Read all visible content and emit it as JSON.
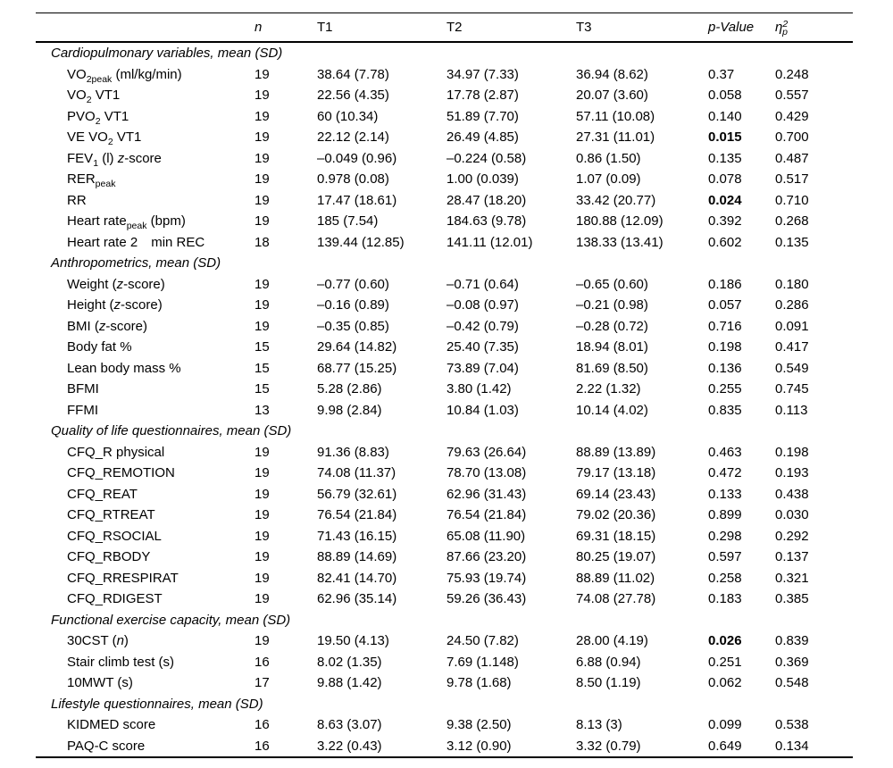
{
  "colors": {
    "text": "#000000",
    "background": "#ffffff",
    "rule": "#000000"
  },
  "table": {
    "columns": [
      {
        "name": "variable",
        "parts": []
      },
      {
        "name": "n",
        "parts": [
          {
            "text": "n",
            "style": "italic"
          }
        ]
      },
      {
        "name": "t1",
        "parts": [
          {
            "text": "T1"
          }
        ]
      },
      {
        "name": "t2",
        "parts": [
          {
            "text": "T2"
          }
        ]
      },
      {
        "name": "t3",
        "parts": [
          {
            "text": "T3"
          }
        ]
      },
      {
        "name": "p_value",
        "parts": [
          {
            "text": "p-Value",
            "style": "italic"
          }
        ]
      },
      {
        "name": "eta_squared_p",
        "parts": [
          {
            "text": "η",
            "style": "italic"
          },
          {
            "text": "2",
            "style": "italic sup"
          },
          {
            "text": "p",
            "style": "italic sub"
          }
        ]
      }
    ],
    "sections": [
      {
        "title": "Cardiopulmonary variables, mean (SD)",
        "rows": [
          {
            "label_parts": [
              {
                "text": "VO"
              },
              {
                "text": "2peak",
                "style": "sub"
              },
              {
                "text": " (ml/kg/min)"
              }
            ],
            "n": "19",
            "t1": "38.64 (7.78)",
            "t2": "34.97 (7.33)",
            "t3": "36.94 (8.62)",
            "p": "0.37",
            "p_bold": false,
            "eta": "0.248"
          },
          {
            "label_parts": [
              {
                "text": "VO"
              },
              {
                "text": "2",
                "style": "sub"
              },
              {
                "text": " VT1"
              }
            ],
            "n": "19",
            "t1": "22.56 (4.35)",
            "t2": "17.78 (2.87)",
            "t3": "20.07 (3.60)",
            "p": "0.058",
            "p_bold": false,
            "eta": "0.557"
          },
          {
            "label_parts": [
              {
                "text": "PVO"
              },
              {
                "text": "2",
                "style": "sub"
              },
              {
                "text": " VT1"
              }
            ],
            "n": "19",
            "t1": "60 (10.34)",
            "t2": "51.89 (7.70)",
            "t3": "57.11 (10.08)",
            "p": "0.140",
            "p_bold": false,
            "eta": "0.429"
          },
          {
            "label_parts": [
              {
                "text": "VE VO"
              },
              {
                "text": "2",
                "style": "sub"
              },
              {
                "text": " VT1"
              }
            ],
            "n": "19",
            "t1": "22.12 (2.14)",
            "t2": "26.49 (4.85)",
            "t3": "27.31 (11.01)",
            "p": "0.015",
            "p_bold": true,
            "eta": "0.700"
          },
          {
            "label_parts": [
              {
                "text": "FEV"
              },
              {
                "text": "1",
                "style": "sub"
              },
              {
                "text": " (l) "
              },
              {
                "text": "z",
                "style": "italic"
              },
              {
                "text": "-score"
              }
            ],
            "n": "19",
            "t1": "–0.049 (0.96)",
            "t2": "–0.224 (0.58)",
            "t3": "0.86 (1.50)",
            "p": "0.135",
            "p_bold": false,
            "eta": "0.487"
          },
          {
            "label_parts": [
              {
                "text": "RER"
              },
              {
                "text": "peak",
                "style": "sub"
              }
            ],
            "n": "19",
            "t1": "0.978 (0.08)",
            "t2": "1.00 (0.039)",
            "t3": "1.07 (0.09)",
            "p": "0.078",
            "p_bold": false,
            "eta": "0.517"
          },
          {
            "label_parts": [
              {
                "text": "RR"
              }
            ],
            "n": "19",
            "t1": "17.47 (18.61)",
            "t2": "28.47 (18.20)",
            "t3": "33.42 (20.77)",
            "p": "0.024",
            "p_bold": true,
            "eta": "0.710"
          },
          {
            "label_parts": [
              {
                "text": "Heart rate"
              },
              {
                "text": "peak",
                "style": "sub"
              },
              {
                "text": " (bpm)"
              }
            ],
            "n": "19",
            "t1": "185 (7.54)",
            "t2": "184.63 (9.78)",
            "t3": "180.88 (12.09)",
            "p": "0.392",
            "p_bold": false,
            "eta": "0.268"
          },
          {
            "label_parts": [
              {
                "text": "Heart rate 2  min REC"
              }
            ],
            "n": "18",
            "t1": "139.44 (12.85)",
            "t2": "141.11 (12.01)",
            "t3": "138.33 (13.41)",
            "p": "0.602",
            "p_bold": false,
            "eta": "0.135"
          }
        ]
      },
      {
        "title": "Anthropometrics, mean (SD)",
        "rows": [
          {
            "label_parts": [
              {
                "text": "Weight ("
              },
              {
                "text": "z",
                "style": "italic"
              },
              {
                "text": "-score)"
              }
            ],
            "n": "19",
            "t1": "–0.77 (0.60)",
            "t2": "–0.71 (0.64)",
            "t3": "–0.65 (0.60)",
            "p": "0.186",
            "p_bold": false,
            "eta": "0.180"
          },
          {
            "label_parts": [
              {
                "text": "Height ("
              },
              {
                "text": "z",
                "style": "italic"
              },
              {
                "text": "-score)"
              }
            ],
            "n": "19",
            "t1": "–0.16 (0.89)",
            "t2": "–0.08 (0.97)",
            "t3": "–0.21 (0.98)",
            "p": "0.057",
            "p_bold": false,
            "eta": "0.286"
          },
          {
            "label_parts": [
              {
                "text": "BMI ("
              },
              {
                "text": "z",
                "style": "italic"
              },
              {
                "text": "-score)"
              }
            ],
            "n": "19",
            "t1": "–0.35 (0.85)",
            "t2": "–0.42 (0.79)",
            "t3": "–0.28 (0.72)",
            "p": "0.716",
            "p_bold": false,
            "eta": "0.091"
          },
          {
            "label_parts": [
              {
                "text": "Body fat %"
              }
            ],
            "n": "15",
            "t1": "29.64 (14.82)",
            "t2": "25.40 (7.35)",
            "t3": "18.94 (8.01)",
            "p": "0.198",
            "p_bold": false,
            "eta": "0.417"
          },
          {
            "label_parts": [
              {
                "text": "Lean body mass %"
              }
            ],
            "n": "15",
            "t1": "68.77 (15.25)",
            "t2": "73.89 (7.04)",
            "t3": "81.69 (8.50)",
            "p": "0.136",
            "p_bold": false,
            "eta": "0.549"
          },
          {
            "label_parts": [
              {
                "text": "BFMI"
              }
            ],
            "n": "15",
            "t1": "5.28 (2.86)",
            "t2": "3.80 (1.42)",
            "t3": "2.22 (1.32)",
            "p": "0.255",
            "p_bold": false,
            "eta": "0.745"
          },
          {
            "label_parts": [
              {
                "text": "FFMI"
              }
            ],
            "n": "13",
            "t1": "9.98 (2.84)",
            "t2": "10.84 (1.03)",
            "t3": "10.14 (4.02)",
            "p": "0.835",
            "p_bold": false,
            "eta": "0.113"
          }
        ]
      },
      {
        "title": "Quality of life questionnaires, mean (SD)",
        "rows": [
          {
            "label_parts": [
              {
                "text": "CFQ_R physical"
              }
            ],
            "n": "19",
            "t1": "91.36 (8.83)",
            "t2": "79.63 (26.64)",
            "t3": "88.89 (13.89)",
            "p": "0.463",
            "p_bold": false,
            "eta": "0.198"
          },
          {
            "label_parts": [
              {
                "text": "CFQ_REMOTION"
              }
            ],
            "n": "19",
            "t1": "74.08 (11.37)",
            "t2": "78.70 (13.08)",
            "t3": "79.17 (13.18)",
            "p": "0.472",
            "p_bold": false,
            "eta": "0.193"
          },
          {
            "label_parts": [
              {
                "text": "CFQ_REAT"
              }
            ],
            "n": "19",
            "t1": "56.79 (32.61)",
            "t2": "62.96 (31.43)",
            "t3": "69.14 (23.43)",
            "p": "0.133",
            "p_bold": false,
            "eta": "0.438"
          },
          {
            "label_parts": [
              {
                "text": "CFQ_RTREAT"
              }
            ],
            "n": "19",
            "t1": "76.54 (21.84)",
            "t2": "76.54 (21.84)",
            "t3": "79.02 (20.36)",
            "p": "0.899",
            "p_bold": false,
            "eta": "0.030"
          },
          {
            "label_parts": [
              {
                "text": "CFQ_RSOCIAL"
              }
            ],
            "n": "19",
            "t1": "71.43 (16.15)",
            "t2": "65.08 (11.90)",
            "t3": "69.31 (18.15)",
            "p": "0.298",
            "p_bold": false,
            "eta": "0.292"
          },
          {
            "label_parts": [
              {
                "text": "CFQ_RBODY"
              }
            ],
            "n": "19",
            "t1": "88.89 (14.69)",
            "t2": "87.66 (23.20)",
            "t3": "80.25 (19.07)",
            "p": "0.597",
            "p_bold": false,
            "eta": "0.137"
          },
          {
            "label_parts": [
              {
                "text": "CFQ_RRESPIRAT"
              }
            ],
            "n": "19",
            "t1": "82.41 (14.70)",
            "t2": "75.93 (19.74)",
            "t3": "88.89 (11.02)",
            "p": "0.258",
            "p_bold": false,
            "eta": "0.321"
          },
          {
            "label_parts": [
              {
                "text": "CFQ_RDIGEST"
              }
            ],
            "n": "19",
            "t1": "62.96 (35.14)",
            "t2": "59.26 (36.43)",
            "t3": "74.08 (27.78)",
            "p": "0.183",
            "p_bold": false,
            "eta": "0.385"
          }
        ]
      },
      {
        "title": "Functional exercise capacity, mean (SD)",
        "rows": [
          {
            "label_parts": [
              {
                "text": "30CST ("
              },
              {
                "text": "n",
                "style": "italic"
              },
              {
                "text": ")"
              }
            ],
            "n": "19",
            "t1": "19.50 (4.13)",
            "t2": "24.50 (7.82)",
            "t3": "28.00 (4.19)",
            "p": "0.026",
            "p_bold": true,
            "eta": "0.839"
          },
          {
            "label_parts": [
              {
                "text": "Stair climb test (s)"
              }
            ],
            "n": "16",
            "t1": "8.02 (1.35)",
            "t2": "7.69 (1.148)",
            "t3": "6.88 (0.94)",
            "p": "0.251",
            "p_bold": false,
            "eta": "0.369"
          },
          {
            "label_parts": [
              {
                "text": "10MWT (s)"
              }
            ],
            "n": "17",
            "t1": "9.88 (1.42)",
            "t2": "9.78 (1.68)",
            "t3": "8.50 (1.19)",
            "p": "0.062",
            "p_bold": false,
            "eta": "0.548"
          }
        ]
      },
      {
        "title": "Lifestyle questionnaires, mean (SD)",
        "rows": [
          {
            "label_parts": [
              {
                "text": "KIDMED score"
              }
            ],
            "n": "16",
            "t1": "8.63 (3.07)",
            "t2": "9.38 (2.50)",
            "t3": "8.13 (3)",
            "p": "0.099",
            "p_bold": false,
            "eta": "0.538"
          },
          {
            "label_parts": [
              {
                "text": "PAQ-C score"
              }
            ],
            "n": "16",
            "t1": "3.22 (0.43)",
            "t2": "3.12 (0.90)",
            "t3": "3.32 (0.79)",
            "p": "0.649",
            "p_bold": false,
            "eta": "0.134"
          }
        ]
      }
    ]
  }
}
